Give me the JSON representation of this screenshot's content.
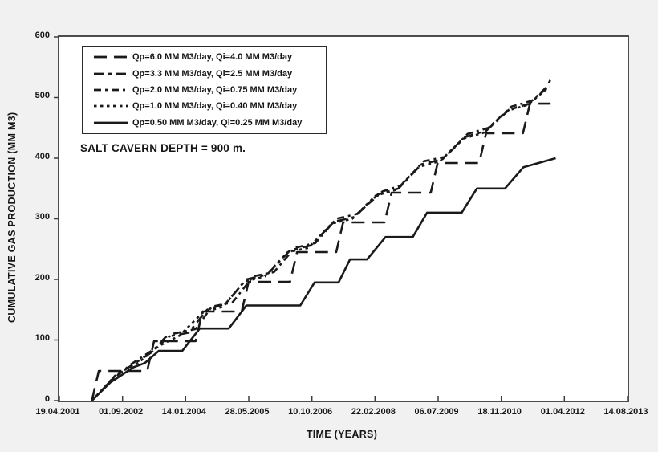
{
  "figure": {
    "background_color": "#f1f1f1",
    "plot_background": "#ffffff",
    "line_color": "#1a1a1a",
    "axis_color": "#4d4d4d"
  },
  "chart_data": {
    "type": "line",
    "title": "",
    "xlabel": "TIME (YEARS)",
    "ylabel": "CUMULATIVE GAS PRODUCTION (MM M3)",
    "annotation": "SALT CAVERN DEPTH = 900 m.",
    "grid": false,
    "legend_position": "upper-left",
    "x_tick_labels": [
      "19.04.2001",
      "01.09.2002",
      "14.01.2004",
      "28.05.2005",
      "10.10.2006",
      "22.02.2008",
      "06.07.2009",
      "18.11.2010",
      "01.04.2012",
      "14.08.2013"
    ],
    "x_range_years": [
      2001.296,
      2013.617
    ],
    "y_ticks": [
      0,
      100,
      200,
      300,
      400,
      500,
      600
    ],
    "ylim": [
      0,
      600
    ],
    "series": [
      {
        "label": "Qp=6.0 MM M3/day, Qi=4.0 MM M3/day",
        "style": "long-dash",
        "dash": "16,9",
        "points": [
          [
            2002.0,
            0
          ],
          [
            2002.15,
            49
          ],
          [
            2003.2,
            49
          ],
          [
            2003.35,
            98
          ],
          [
            2004.25,
            98
          ],
          [
            2004.4,
            147
          ],
          [
            2005.25,
            147
          ],
          [
            2005.4,
            196
          ],
          [
            2006.3,
            196
          ],
          [
            2006.45,
            245
          ],
          [
            2007.3,
            245
          ],
          [
            2007.45,
            294
          ],
          [
            2008.35,
            294
          ],
          [
            2008.5,
            343
          ],
          [
            2009.35,
            343
          ],
          [
            2009.5,
            392
          ],
          [
            2010.4,
            392
          ],
          [
            2010.55,
            441
          ],
          [
            2011.35,
            441
          ],
          [
            2011.5,
            490
          ],
          [
            2011.95,
            490
          ]
        ]
      },
      {
        "label": "Qp=3.3 MM M3/day, Qi=2.5 MM M3/day",
        "style": "dash-dot",
        "dash": "12,6,4,6",
        "points": [
          [
            2002.0,
            0
          ],
          [
            2002.5,
            40
          ],
          [
            2002.8,
            55
          ],
          [
            2003.3,
            80
          ],
          [
            2003.6,
            105
          ],
          [
            2004.1,
            112
          ],
          [
            2004.5,
            150
          ],
          [
            2004.9,
            160
          ],
          [
            2005.35,
            200
          ],
          [
            2005.8,
            208
          ],
          [
            2006.3,
            248
          ],
          [
            2006.75,
            256
          ],
          [
            2007.25,
            295
          ],
          [
            2007.7,
            303
          ],
          [
            2008.2,
            340
          ],
          [
            2008.65,
            350
          ],
          [
            2009.15,
            390
          ],
          [
            2009.6,
            398
          ],
          [
            2010.1,
            435
          ],
          [
            2010.55,
            445
          ],
          [
            2011.05,
            480
          ],
          [
            2011.5,
            490
          ],
          [
            2011.85,
            515
          ],
          [
            2011.95,
            530
          ]
        ]
      },
      {
        "label": "Qp=2.0 MM M3/day, Qi=0.75 MM M3/day",
        "style": "medium-dash",
        "dash": "9,5,3,5",
        "points": [
          [
            2002.0,
            0
          ],
          [
            2002.45,
            35
          ],
          [
            2002.85,
            60
          ],
          [
            2003.35,
            85
          ],
          [
            2003.75,
            110
          ],
          [
            2004.25,
            118
          ],
          [
            2004.6,
            155
          ],
          [
            2005.05,
            162
          ],
          [
            2005.5,
            205
          ],
          [
            2005.95,
            212
          ],
          [
            2006.4,
            252
          ],
          [
            2006.85,
            260
          ],
          [
            2007.3,
            300
          ],
          [
            2007.75,
            308
          ],
          [
            2008.3,
            345
          ],
          [
            2008.7,
            355
          ],
          [
            2009.2,
            395
          ],
          [
            2009.65,
            402
          ],
          [
            2010.15,
            440
          ],
          [
            2010.6,
            450
          ],
          [
            2011.1,
            485
          ],
          [
            2011.55,
            495
          ],
          [
            2011.9,
            520
          ]
        ]
      },
      {
        "label": "Qp=1.0 MM M3/day, Qi=0.40 MM M3/day",
        "style": "short-dash",
        "dash": "3.5,4.5",
        "points": [
          [
            2002.0,
            0
          ],
          [
            2002.55,
            45
          ],
          [
            2003.0,
            62
          ],
          [
            2003.45,
            90
          ],
          [
            2003.9,
            107
          ],
          [
            2004.4,
            145
          ],
          [
            2004.85,
            155
          ],
          [
            2005.3,
            196
          ],
          [
            2005.75,
            205
          ],
          [
            2006.25,
            245
          ],
          [
            2006.7,
            252
          ],
          [
            2007.2,
            292
          ],
          [
            2007.65,
            300
          ],
          [
            2008.15,
            338
          ],
          [
            2008.6,
            348
          ],
          [
            2009.1,
            386
          ],
          [
            2009.55,
            395
          ],
          [
            2010.05,
            432
          ],
          [
            2010.5,
            442
          ],
          [
            2011.0,
            478
          ],
          [
            2011.45,
            488
          ],
          [
            2011.8,
            510
          ],
          [
            2011.92,
            518
          ]
        ]
      },
      {
        "label": "Qp=0.50 MM M3/day, Qi=0.25 MM M3/day",
        "style": "solid",
        "dash": "",
        "points": [
          [
            2002.0,
            0
          ],
          [
            2002.4,
            30
          ],
          [
            2002.9,
            55
          ],
          [
            2003.15,
            62
          ],
          [
            2003.45,
            82
          ],
          [
            2003.96,
            82
          ],
          [
            2004.34,
            119
          ],
          [
            2004.97,
            119
          ],
          [
            2005.35,
            157
          ],
          [
            2006.52,
            157
          ],
          [
            2006.83,
            195
          ],
          [
            2007.35,
            195
          ],
          [
            2007.6,
            233
          ],
          [
            2007.97,
            233
          ],
          [
            2008.37,
            270
          ],
          [
            2008.96,
            270
          ],
          [
            2009.27,
            310
          ],
          [
            2010.02,
            310
          ],
          [
            2010.35,
            350
          ],
          [
            2010.96,
            350
          ],
          [
            2011.36,
            385
          ],
          [
            2012.06,
            400
          ]
        ]
      }
    ]
  }
}
